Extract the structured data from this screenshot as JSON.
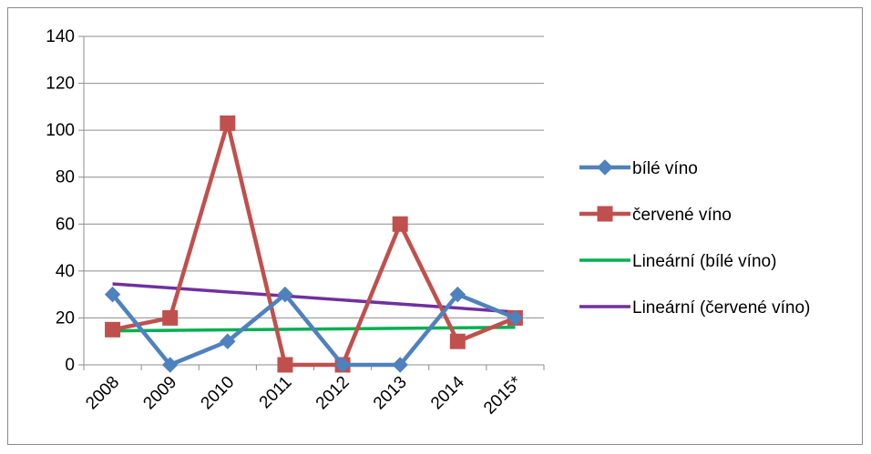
{
  "chart_data": {
    "type": "line",
    "categories": [
      "2008",
      "2009",
      "2010",
      "2011",
      "2012",
      "2013",
      "2014",
      "2015*"
    ],
    "ylim": [
      0,
      140
    ],
    "yticks": [
      0,
      20,
      40,
      60,
      80,
      100,
      120,
      140
    ],
    "grid": true,
    "legend_position": "right",
    "series": [
      {
        "name": "bílé víno",
        "values": [
          30,
          0,
          10,
          30,
          0,
          0,
          30,
          20
        ],
        "color": "#4f81bd",
        "marker": "diamond"
      },
      {
        "name": "červené víno",
        "values": [
          15,
          20,
          103,
          0,
          0,
          60,
          10,
          20
        ],
        "color": "#c0504d",
        "marker": "square"
      }
    ],
    "trendlines": [
      {
        "name": "Lineární (bílé víno)",
        "start": 14.5,
        "end": 16,
        "color": "#00b050"
      },
      {
        "name": "Lineární (červené víno)",
        "start": 34.5,
        "end": 22.5,
        "color": "#7030a0"
      }
    ]
  }
}
